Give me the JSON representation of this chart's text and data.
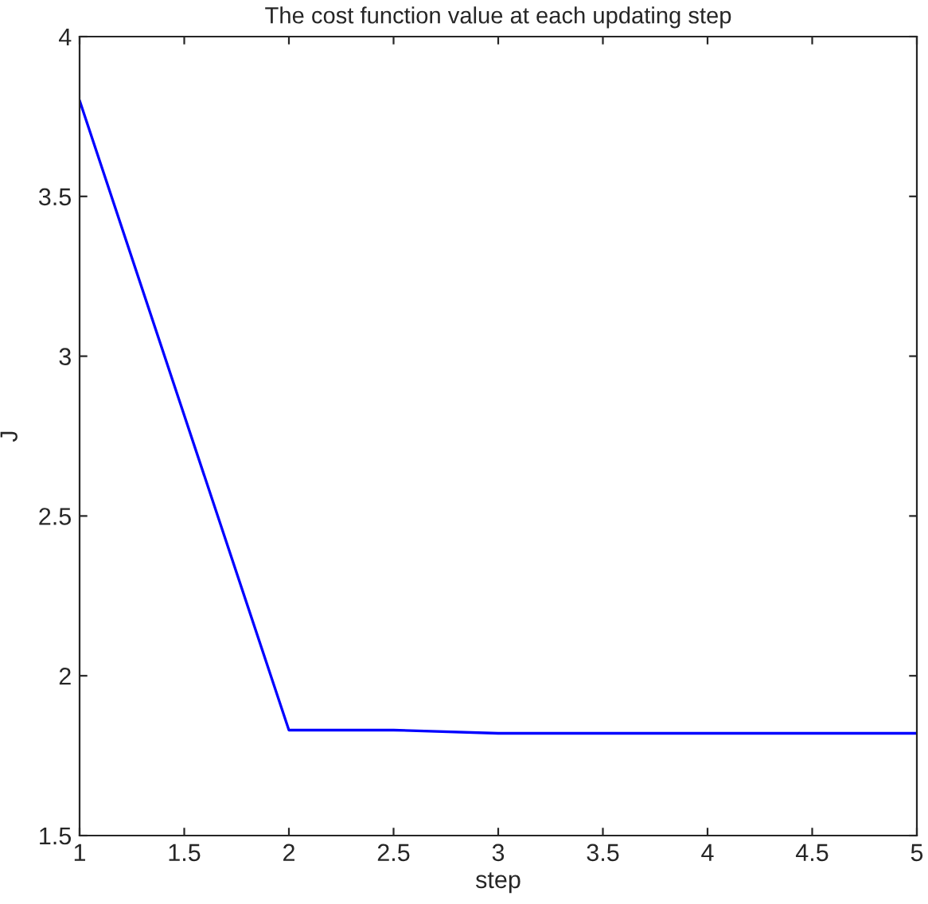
{
  "chart_data": {
    "type": "line",
    "title": "The cost function value at each updating step",
    "xlabel": "step",
    "ylabel": "J",
    "x": [
      1,
      2,
      2.5,
      3,
      4,
      5
    ],
    "series": [
      {
        "color": "#0000ff",
        "values": [
          3.8,
          1.83,
          1.83,
          1.82,
          1.82,
          1.82
        ]
      }
    ],
    "xlim": [
      1,
      5
    ],
    "xticks": [
      1,
      1.5,
      2,
      2.5,
      3,
      3.5,
      4,
      4.5,
      5
    ],
    "ylim": [
      1.5,
      4
    ],
    "yticks": [
      1.5,
      2,
      2.5,
      3,
      3.5,
      4
    ],
    "grid": false,
    "legend": false
  }
}
